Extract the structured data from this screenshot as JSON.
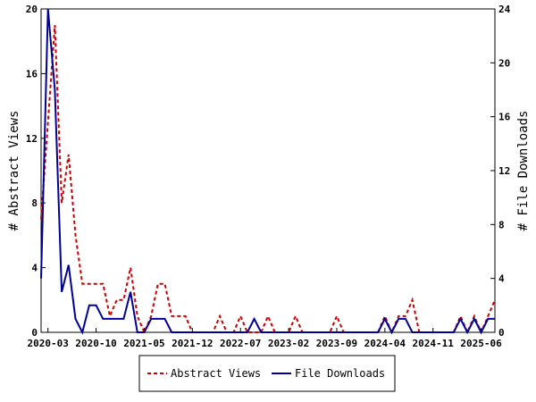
{
  "chart_data": {
    "type": "line",
    "x_start": "2020-02",
    "x_tick_labels": [
      "2020-03",
      "2020-10",
      "2021-05",
      "2021-12",
      "2022-07",
      "2023-02",
      "2023-09",
      "2024-04",
      "2024-11",
      "2025-06"
    ],
    "x_tick_months": [
      "2020-03",
      "2020-10",
      "2021-05",
      "2021-12",
      "2022-07",
      "2023-02",
      "2023-09",
      "2024-04",
      "2024-11",
      "2025-06"
    ],
    "x_end": "2025-08",
    "ylabel_left": "# Abstract Views",
    "ylabel_right": "# File Downloads",
    "ylim_left": [
      0,
      20
    ],
    "ylim_right": [
      0,
      24
    ],
    "yticks_left": [
      0,
      4,
      8,
      12,
      16,
      20
    ],
    "yticks_right": [
      0,
      4,
      8,
      12,
      16,
      20,
      24
    ],
    "legend_position": "bottom-center",
    "series": [
      {
        "name": "Abstract Views",
        "axis": "left",
        "color": "#cc0000",
        "style": "dashed",
        "points": [
          [
            "2020-02",
            7
          ],
          [
            "2020-03",
            13
          ],
          [
            "2020-04",
            19
          ],
          [
            "2020-05",
            8
          ],
          [
            "2020-06",
            11
          ],
          [
            "2020-07",
            6
          ],
          [
            "2020-08",
            3
          ],
          [
            "2020-09",
            3
          ],
          [
            "2020-10",
            3
          ],
          [
            "2020-11",
            3
          ],
          [
            "2020-12",
            1
          ],
          [
            "2021-01",
            2
          ],
          [
            "2021-02",
            2
          ],
          [
            "2021-03",
            4
          ],
          [
            "2021-04",
            1
          ],
          [
            "2021-05",
            0
          ],
          [
            "2021-06",
            1
          ],
          [
            "2021-07",
            3
          ],
          [
            "2021-08",
            3
          ],
          [
            "2021-09",
            1
          ],
          [
            "2021-10",
            1
          ],
          [
            "2021-11",
            1
          ],
          [
            "2021-12",
            0
          ],
          [
            "2022-01",
            0
          ],
          [
            "2022-02",
            0
          ],
          [
            "2022-03",
            0
          ],
          [
            "2022-04",
            1
          ],
          [
            "2022-05",
            0
          ],
          [
            "2022-06",
            0
          ],
          [
            "2022-07",
            1
          ],
          [
            "2022-08",
            0
          ],
          [
            "2022-09",
            0
          ],
          [
            "2022-10",
            0
          ],
          [
            "2022-11",
            1
          ],
          [
            "2022-12",
            0
          ],
          [
            "2023-01",
            0
          ],
          [
            "2023-02",
            0
          ],
          [
            "2023-03",
            1
          ],
          [
            "2023-04",
            0
          ],
          [
            "2023-05",
            0
          ],
          [
            "2023-06",
            0
          ],
          [
            "2023-07",
            0
          ],
          [
            "2023-08",
            0
          ],
          [
            "2023-09",
            1
          ],
          [
            "2023-10",
            0
          ],
          [
            "2023-11",
            0
          ],
          [
            "2023-12",
            0
          ],
          [
            "2024-01",
            0
          ],
          [
            "2024-02",
            0
          ],
          [
            "2024-03",
            0
          ],
          [
            "2024-04",
            1
          ],
          [
            "2024-05",
            0
          ],
          [
            "2024-06",
            1
          ],
          [
            "2024-07",
            1
          ],
          [
            "2024-08",
            2
          ],
          [
            "2024-09",
            0
          ],
          [
            "2024-10",
            0
          ],
          [
            "2024-11",
            0
          ],
          [
            "2024-12",
            0
          ],
          [
            "2025-01",
            0
          ],
          [
            "2025-02",
            0
          ],
          [
            "2025-03",
            1
          ],
          [
            "2025-04",
            0
          ],
          [
            "2025-05",
            1
          ],
          [
            "2025-06",
            0
          ],
          [
            "2025-07",
            1
          ],
          [
            "2025-08",
            2
          ]
        ]
      },
      {
        "name": "File Downloads",
        "axis": "right",
        "color": "#000099",
        "style": "solid",
        "points": [
          [
            "2020-02",
            4
          ],
          [
            "2020-03",
            24
          ],
          [
            "2020-04",
            18
          ],
          [
            "2020-05",
            3
          ],
          [
            "2020-06",
            5
          ],
          [
            "2020-07",
            1
          ],
          [
            "2020-08",
            0
          ],
          [
            "2020-09",
            2
          ],
          [
            "2020-10",
            2
          ],
          [
            "2020-11",
            1
          ],
          [
            "2020-12",
            1
          ],
          [
            "2021-01",
            1
          ],
          [
            "2021-02",
            1
          ],
          [
            "2021-03",
            3
          ],
          [
            "2021-04",
            0
          ],
          [
            "2021-05",
            0
          ],
          [
            "2021-06",
            1
          ],
          [
            "2021-07",
            1
          ],
          [
            "2021-08",
            1
          ],
          [
            "2021-09",
            0
          ],
          [
            "2021-10",
            0
          ],
          [
            "2021-11",
            0
          ],
          [
            "2021-12",
            0
          ],
          [
            "2022-01",
            0
          ],
          [
            "2022-02",
            0
          ],
          [
            "2022-03",
            0
          ],
          [
            "2022-04",
            0
          ],
          [
            "2022-05",
            0
          ],
          [
            "2022-06",
            0
          ],
          [
            "2022-07",
            0
          ],
          [
            "2022-08",
            0
          ],
          [
            "2022-09",
            1
          ],
          [
            "2022-10",
            0
          ],
          [
            "2022-11",
            0
          ],
          [
            "2022-12",
            0
          ],
          [
            "2023-01",
            0
          ],
          [
            "2023-02",
            0
          ],
          [
            "2023-03",
            0
          ],
          [
            "2023-04",
            0
          ],
          [
            "2023-05",
            0
          ],
          [
            "2023-06",
            0
          ],
          [
            "2023-07",
            0
          ],
          [
            "2023-08",
            0
          ],
          [
            "2023-09",
            0
          ],
          [
            "2023-10",
            0
          ],
          [
            "2023-11",
            0
          ],
          [
            "2023-12",
            0
          ],
          [
            "2024-01",
            0
          ],
          [
            "2024-02",
            0
          ],
          [
            "2024-03",
            0
          ],
          [
            "2024-04",
            1
          ],
          [
            "2024-05",
            0
          ],
          [
            "2024-06",
            1
          ],
          [
            "2024-07",
            1
          ],
          [
            "2024-08",
            0
          ],
          [
            "2024-09",
            0
          ],
          [
            "2024-10",
            0
          ],
          [
            "2024-11",
            0
          ],
          [
            "2024-12",
            0
          ],
          [
            "2025-01",
            0
          ],
          [
            "2025-02",
            0
          ],
          [
            "2025-03",
            1
          ],
          [
            "2025-04",
            0
          ],
          [
            "2025-05",
            1
          ],
          [
            "2025-06",
            0
          ],
          [
            "2025-07",
            1
          ],
          [
            "2025-08",
            1
          ]
        ]
      }
    ]
  }
}
